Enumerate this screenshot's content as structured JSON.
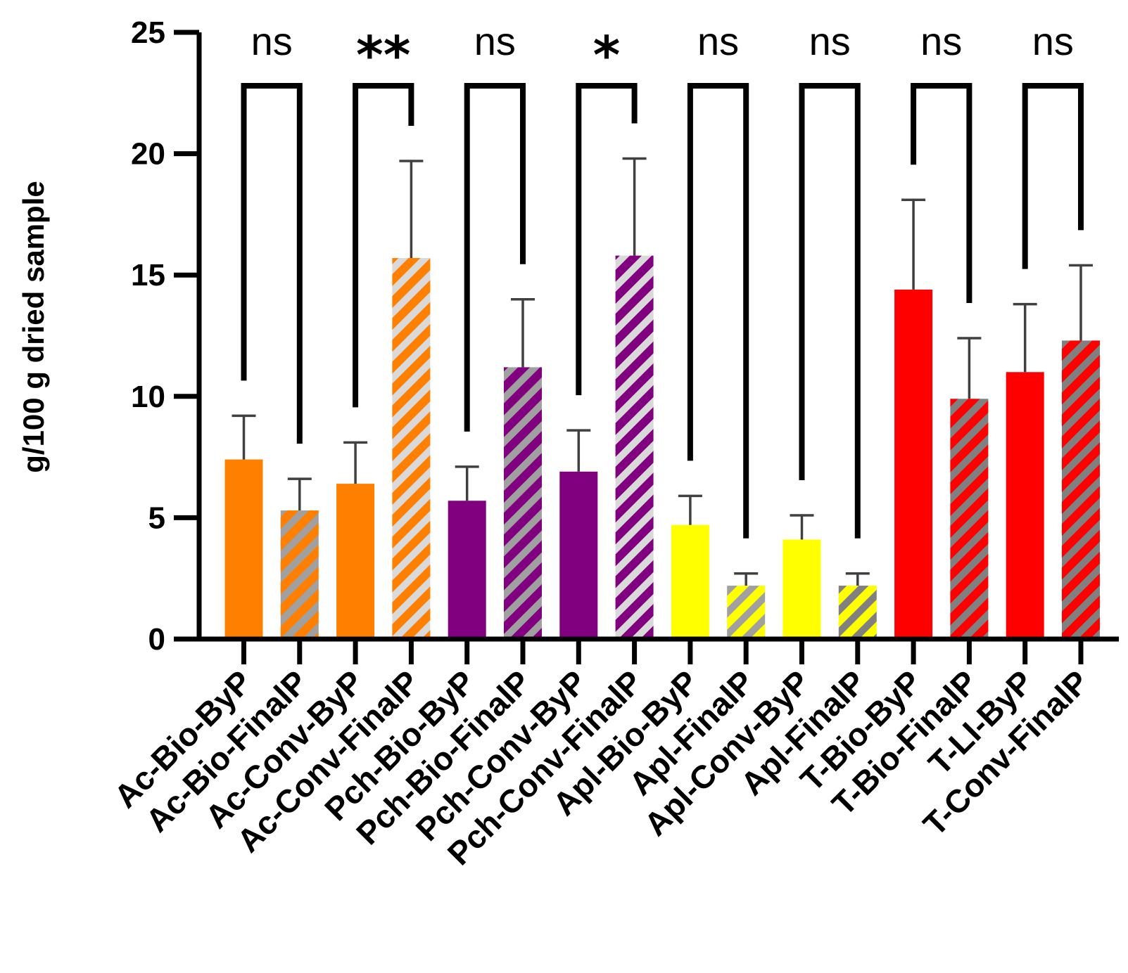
{
  "chart_data": {
    "type": "bar",
    "ylabel": "g/100 g dried sample",
    "ylim": [
      0,
      25
    ],
    "yticks": [
      0,
      5,
      10,
      15,
      20,
      25
    ],
    "categories": [
      "Ac-Bio-ByP",
      "Ac-Bio-FinalP",
      "Ac-Conv-ByP",
      "Ac-Conv-FinalP",
      "Pch-Bio-ByP",
      "Pch-Bio-FinalP",
      "Pch-Conv-ByP",
      "Pch-Conv-FinalP",
      "Apl-Bio-ByP",
      "Apl-FinalP",
      "Apl-Conv-ByP",
      "Apl-FinalP",
      "T-Bio-ByP",
      "T-Bio-FinalP",
      "T-LI-ByP",
      "T-Conv-FinalP"
    ],
    "values": [
      7.4,
      5.3,
      6.4,
      15.7,
      5.7,
      11.2,
      6.9,
      15.8,
      4.7,
      2.2,
      4.1,
      2.2,
      14.4,
      9.9,
      11.0,
      12.3
    ],
    "errors": [
      1.8,
      1.3,
      1.7,
      4.0,
      1.4,
      2.8,
      1.7,
      4.0,
      1.2,
      0.5,
      1.0,
      0.5,
      3.7,
      2.5,
      2.8,
      3.1
    ],
    "colors": [
      "#FF8000",
      "#FF8000",
      "#FF8000",
      "#FF8000",
      "#800080",
      "#800080",
      "#800080",
      "#800080",
      "#FFFF00",
      "#FFFF00",
      "#FFFF00",
      "#FFFF00",
      "#FF0000",
      "#FF0000",
      "#FF0000",
      "#FF0000"
    ],
    "hatched": [
      false,
      true,
      false,
      true,
      false,
      true,
      false,
      true,
      false,
      true,
      false,
      true,
      false,
      true,
      false,
      true
    ],
    "hatch_colors": [
      "",
      "#A0A0A0",
      "",
      "#D9D9D9",
      "",
      "#A0A0A0",
      "",
      "#D9D9D9",
      "",
      "#A0A0A0",
      "",
      "#808080",
      "",
      "#808080",
      "",
      "#808080"
    ],
    "comparisons": [
      {
        "pair": [
          0,
          1
        ],
        "label": "ns"
      },
      {
        "pair": [
          2,
          3
        ],
        "label": "**"
      },
      {
        "pair": [
          4,
          5
        ],
        "label": "ns"
      },
      {
        "pair": [
          6,
          7
        ],
        "label": "*"
      },
      {
        "pair": [
          8,
          9
        ],
        "label": "ns"
      },
      {
        "pair": [
          10,
          11
        ],
        "label": "ns"
      },
      {
        "pair": [
          12,
          13
        ],
        "label": "ns"
      },
      {
        "pair": [
          14,
          15
        ],
        "label": "ns"
      }
    ],
    "comparison_level": 22.8
  }
}
